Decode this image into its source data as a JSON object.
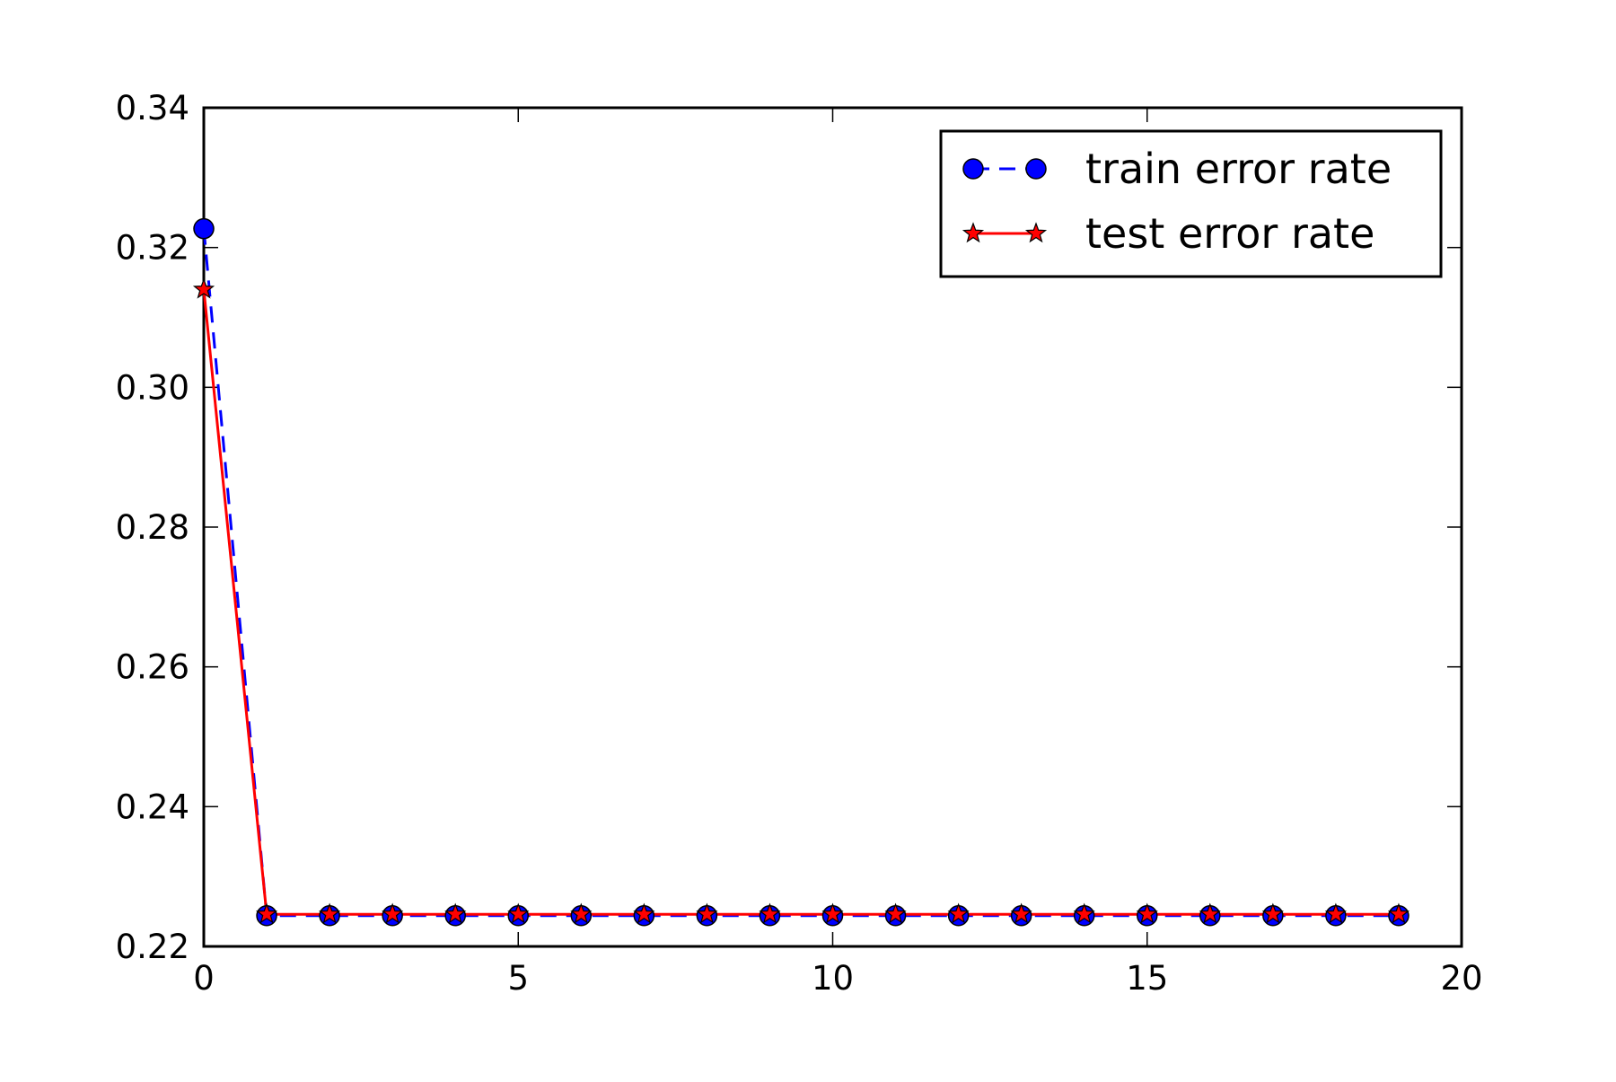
{
  "chart_data": {
    "type": "line",
    "title": "",
    "xlabel": "",
    "ylabel": "",
    "xlim": [
      0,
      20
    ],
    "ylim": [
      0.22,
      0.34
    ],
    "xticks": [
      0,
      5,
      10,
      15,
      20
    ],
    "xtick_labels": [
      "0",
      "5",
      "10",
      "15",
      "20"
    ],
    "yticks": [
      0.22,
      0.24,
      0.26,
      0.28,
      0.3,
      0.32,
      0.34
    ],
    "ytick_labels": [
      "0.22",
      "0.24",
      "0.26",
      "0.28",
      "0.30",
      "0.32",
      "0.34"
    ],
    "grid": false,
    "legend_position": "top-right",
    "x": [
      0,
      1,
      2,
      3,
      4,
      5,
      6,
      7,
      8,
      9,
      10,
      11,
      12,
      13,
      14,
      15,
      16,
      17,
      18,
      19
    ],
    "series": [
      {
        "name": "train error rate",
        "color": "#0000ff",
        "line_style": "dashed",
        "marker": "circle",
        "values": [
          0.3227,
          0.2244,
          0.2244,
          0.2244,
          0.2244,
          0.2244,
          0.2244,
          0.2244,
          0.2244,
          0.2244,
          0.2244,
          0.2244,
          0.2244,
          0.2244,
          0.2244,
          0.2244,
          0.2244,
          0.2244,
          0.2244,
          0.2244
        ]
      },
      {
        "name": "test error rate",
        "color": "#ff0000",
        "line_style": "solid",
        "marker": "star",
        "values": [
          0.314,
          0.2246,
          0.2246,
          0.2246,
          0.2246,
          0.2246,
          0.2246,
          0.2246,
          0.2246,
          0.2246,
          0.2246,
          0.2246,
          0.2246,
          0.2246,
          0.2246,
          0.2246,
          0.2246,
          0.2246,
          0.2246,
          0.2246
        ]
      }
    ]
  }
}
